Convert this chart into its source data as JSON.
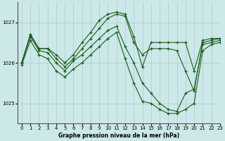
{
  "title": "Graphe pression niveau de la mer (hPa)",
  "background_color": "#cce8e8",
  "line_color": "#1a5c1a",
  "grid_color": "#aacccc",
  "axis_bg": "#cce8e8",
  "xlim": [
    -0.5,
    23
  ],
  "ylim": [
    1024.5,
    1027.5
  ],
  "yticks": [
    1025,
    1026,
    1027
  ],
  "xticks": [
    0,
    1,
    2,
    3,
    4,
    5,
    6,
    7,
    8,
    9,
    10,
    11,
    12,
    13,
    14,
    15,
    16,
    17,
    18,
    19,
    20,
    21,
    22,
    23
  ],
  "series": [
    [
      1026.0,
      1026.7,
      1026.35,
      1026.35,
      1026.2,
      1026.0,
      1026.2,
      1026.5,
      1026.75,
      1027.05,
      1027.2,
      1027.25,
      1027.2,
      1026.65,
      1025.9,
      1026.5,
      1026.5,
      1026.5,
      1026.5,
      1026.5,
      1025.8,
      1026.55,
      1026.6,
      1026.6
    ],
    [
      1026.0,
      1026.7,
      1026.35,
      1026.35,
      1026.1,
      1025.9,
      1026.1,
      1026.35,
      1026.6,
      1026.85,
      1027.1,
      1027.2,
      1027.15,
      1026.5,
      1026.2,
      1026.35,
      1026.35,
      1026.35,
      1026.3,
      1025.8,
      1025.3,
      1026.5,
      1026.55,
      1026.6
    ],
    [
      1026.0,
      1026.65,
      1026.3,
      1026.25,
      1026.0,
      1025.8,
      1026.05,
      1026.2,
      1026.4,
      1026.6,
      1026.8,
      1026.9,
      1026.4,
      1026.0,
      1025.5,
      1025.25,
      1025.0,
      1024.85,
      1024.8,
      1025.25,
      1025.35,
      1026.45,
      1026.5,
      1026.55
    ],
    [
      1025.95,
      1026.55,
      1026.2,
      1026.1,
      1025.8,
      1025.65,
      1025.85,
      1026.0,
      1026.2,
      1026.4,
      1026.6,
      1026.75,
      1026.1,
      1025.5,
      1025.05,
      1025.0,
      1024.85,
      1024.75,
      1024.75,
      1024.85,
      1025.0,
      1026.3,
      1026.45,
      1026.5
    ]
  ]
}
